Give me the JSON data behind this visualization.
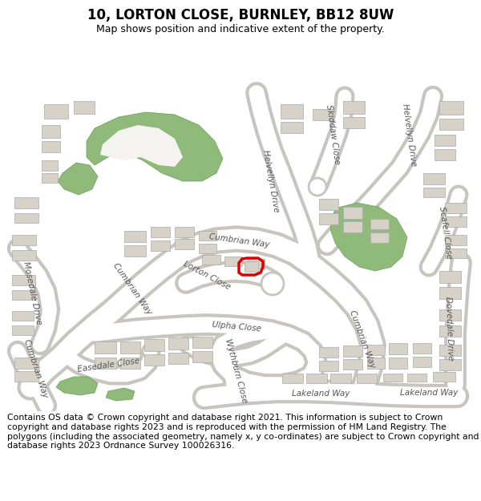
{
  "title": "10, LORTON CLOSE, BURNLEY, BB12 8UW",
  "subtitle": "Map shows position and indicative extent of the property.",
  "copyright": "Contains OS data © Crown copyright and database right 2021. This information is subject to Crown copyright and database rights 2023 and is reproduced with the permission of HM Land Registry. The polygons (including the associated geometry, namely x, y co-ordinates) are subject to Crown copyright and database rights 2023 Ordnance Survey 100026316.",
  "bg_color": "#f5f3f0",
  "road_color": "#ffffff",
  "building_color": "#d6d2c8",
  "green_color": "#8fba7a",
  "highlight_color": "#dd0000",
  "road_edge_color": "#c8c4be",
  "title_fontsize": 12,
  "subtitle_fontsize": 9,
  "copyright_fontsize": 7.8,
  "label_color": "#555555",
  "label_fontsize": 7.5
}
